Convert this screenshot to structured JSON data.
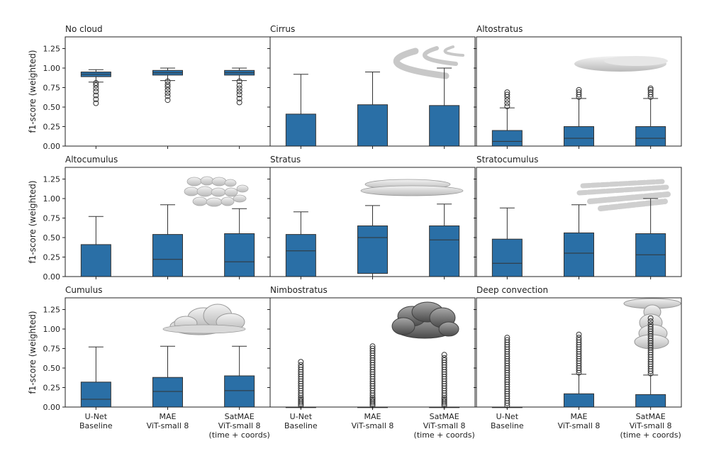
{
  "chart_data": {
    "type": "box",
    "ylabel": "f1-score (weighted)",
    "ylim": [
      0,
      1.4
    ],
    "yticks": [
      "0.00",
      "0.25",
      "0.50",
      "0.75",
      "1.00",
      "1.25"
    ],
    "categories": [
      [
        "U-Net",
        "Baseline"
      ],
      [
        "MAE",
        "ViT-small 8"
      ],
      [
        "SatMAE",
        "ViT-small 8",
        "(time + coords)"
      ]
    ],
    "box_color": "#2a6fa6",
    "panels": [
      {
        "title": "No cloud",
        "illustration": "none",
        "boxes": [
          {
            "q1": 0.89,
            "median": 0.92,
            "q3": 0.95,
            "whisker_low": 0.82,
            "whisker_high": 0.98,
            "outliers": [
              0.55,
              0.6,
              0.65,
              0.7,
              0.74,
              0.78,
              0.81
            ]
          },
          {
            "q1": 0.91,
            "median": 0.94,
            "q3": 0.97,
            "whisker_low": 0.84,
            "whisker_high": 1.0,
            "outliers": [
              0.59,
              0.64,
              0.68,
              0.72,
              0.76,
              0.79,
              0.83
            ]
          },
          {
            "q1": 0.91,
            "median": 0.94,
            "q3": 0.97,
            "whisker_low": 0.84,
            "whisker_high": 1.0,
            "outliers": [
              0.56,
              0.61,
              0.66,
              0.7,
              0.74,
              0.78,
              0.83
            ]
          }
        ]
      },
      {
        "title": "Cirrus",
        "illustration": "cirrus-cloud-icon",
        "boxes": [
          {
            "q1": 0.0,
            "median": 0.0,
            "q3": 0.41,
            "whisker_low": 0.0,
            "whisker_high": 0.92,
            "outliers": []
          },
          {
            "q1": 0.0,
            "median": 0.0,
            "q3": 0.53,
            "whisker_low": 0.0,
            "whisker_high": 0.95,
            "outliers": []
          },
          {
            "q1": 0.0,
            "median": 0.0,
            "q3": 0.52,
            "whisker_low": 0.0,
            "whisker_high": 1.0,
            "outliers": []
          }
        ]
      },
      {
        "title": "Altostratus",
        "illustration": "altostratus-cloud-icon",
        "boxes": [
          {
            "q1": 0.0,
            "median": 0.06,
            "q3": 0.2,
            "whisker_low": 0.0,
            "whisker_high": 0.49,
            "outliers": [
              0.51,
              0.55,
              0.59,
              0.63,
              0.66,
              0.69
            ]
          },
          {
            "q1": 0.0,
            "median": 0.1,
            "q3": 0.25,
            "whisker_low": 0.0,
            "whisker_high": 0.61,
            "outliers": [
              0.63,
              0.66,
              0.69,
              0.72
            ]
          },
          {
            "q1": 0.0,
            "median": 0.1,
            "q3": 0.25,
            "whisker_low": 0.0,
            "whisker_high": 0.61,
            "outliers": [
              0.63,
              0.66,
              0.69,
              0.72,
              0.74
            ]
          }
        ]
      },
      {
        "title": "Altocumulus",
        "illustration": "altocumulus-cloud-icon",
        "boxes": [
          {
            "q1": 0.0,
            "median": 0.0,
            "q3": 0.41,
            "whisker_low": 0.0,
            "whisker_high": 0.77,
            "outliers": []
          },
          {
            "q1": 0.0,
            "median": 0.22,
            "q3": 0.54,
            "whisker_low": 0.0,
            "whisker_high": 0.92,
            "outliers": []
          },
          {
            "q1": 0.0,
            "median": 0.19,
            "q3": 0.55,
            "whisker_low": 0.0,
            "whisker_high": 0.87,
            "outliers": []
          }
        ]
      },
      {
        "title": "Stratus",
        "illustration": "stratus-cloud-icon",
        "boxes": [
          {
            "q1": 0.0,
            "median": 0.33,
            "q3": 0.54,
            "whisker_low": 0.0,
            "whisker_high": 0.83,
            "outliers": []
          },
          {
            "q1": 0.04,
            "median": 0.5,
            "q3": 0.65,
            "whisker_low": 0.0,
            "whisker_high": 0.91,
            "outliers": []
          },
          {
            "q1": 0.0,
            "median": 0.47,
            "q3": 0.65,
            "whisker_low": 0.0,
            "whisker_high": 0.93,
            "outliers": []
          }
        ]
      },
      {
        "title": "Stratocumulus",
        "illustration": "stratocumulus-cloud-icon",
        "boxes": [
          {
            "q1": 0.0,
            "median": 0.17,
            "q3": 0.48,
            "whisker_low": 0.0,
            "whisker_high": 0.88,
            "outliers": []
          },
          {
            "q1": 0.0,
            "median": 0.3,
            "q3": 0.56,
            "whisker_low": 0.0,
            "whisker_high": 0.92,
            "outliers": []
          },
          {
            "q1": 0.0,
            "median": 0.28,
            "q3": 0.55,
            "whisker_low": 0.0,
            "whisker_high": 1.0,
            "outliers": []
          }
        ]
      },
      {
        "title": "Cumulus",
        "illustration": "cumulus-cloud-icon",
        "boxes": [
          {
            "q1": 0.0,
            "median": 0.1,
            "q3": 0.32,
            "whisker_low": 0.0,
            "whisker_high": 0.77,
            "outliers": []
          },
          {
            "q1": 0.0,
            "median": 0.2,
            "q3": 0.38,
            "whisker_low": 0.0,
            "whisker_high": 0.78,
            "outliers": []
          },
          {
            "q1": 0.0,
            "median": 0.21,
            "q3": 0.4,
            "whisker_low": 0.0,
            "whisker_high": 0.78,
            "outliers": []
          }
        ]
      },
      {
        "title": "Nimbostratus",
        "illustration": "nimbostratus-cloud-icon",
        "boxes": [
          {
            "q1": 0.0,
            "median": 0.0,
            "q3": 0.0,
            "whisker_low": 0.0,
            "whisker_high": 0.0,
            "outliers": [
              0.02,
              0.04,
              0.06,
              0.08,
              0.1,
              0.12,
              0.15,
              0.18,
              0.21,
              0.24,
              0.27,
              0.3,
              0.33,
              0.36,
              0.39,
              0.42,
              0.45,
              0.48,
              0.51,
              0.54,
              0.58
            ]
          },
          {
            "q1": 0.0,
            "median": 0.0,
            "q3": 0.0,
            "whisker_low": 0.0,
            "whisker_high": 0.0,
            "outliers": [
              0.02,
              0.04,
              0.06,
              0.08,
              0.1,
              0.12,
              0.15,
              0.18,
              0.21,
              0.24,
              0.27,
              0.3,
              0.33,
              0.36,
              0.39,
              0.42,
              0.45,
              0.48,
              0.51,
              0.54,
              0.57,
              0.6,
              0.63,
              0.66,
              0.69,
              0.72,
              0.75,
              0.78
            ]
          },
          {
            "q1": 0.0,
            "median": 0.0,
            "q3": 0.0,
            "whisker_low": 0.0,
            "whisker_high": 0.0,
            "outliers": [
              0.02,
              0.04,
              0.06,
              0.08,
              0.1,
              0.12,
              0.15,
              0.18,
              0.21,
              0.24,
              0.27,
              0.3,
              0.33,
              0.36,
              0.39,
              0.42,
              0.45,
              0.48,
              0.51,
              0.54,
              0.57,
              0.6,
              0.63,
              0.67
            ]
          }
        ]
      },
      {
        "title": "Deep convection",
        "illustration": "deep-convection-cloud-icon",
        "boxes": [
          {
            "q1": 0.0,
            "median": 0.0,
            "q3": 0.0,
            "whisker_low": 0.0,
            "whisker_high": 0.0,
            "outliers": [
              0.02,
              0.05,
              0.08,
              0.11,
              0.14,
              0.17,
              0.2,
              0.23,
              0.26,
              0.29,
              0.32,
              0.35,
              0.38,
              0.41,
              0.44,
              0.47,
              0.5,
              0.53,
              0.56,
              0.59,
              0.62,
              0.65,
              0.68,
              0.71,
              0.74,
              0.77,
              0.8,
              0.83,
              0.86,
              0.89
            ]
          },
          {
            "q1": 0.0,
            "median": 0.0,
            "q3": 0.17,
            "whisker_low": 0.0,
            "whisker_high": 0.42,
            "outliers": [
              0.44,
              0.47,
              0.5,
              0.53,
              0.56,
              0.59,
              0.62,
              0.65,
              0.68,
              0.71,
              0.74,
              0.77,
              0.8,
              0.83,
              0.86,
              0.89,
              0.93
            ]
          },
          {
            "q1": 0.0,
            "median": 0.0,
            "q3": 0.16,
            "whisker_low": 0.0,
            "whisker_high": 0.41,
            "outliers": [
              0.43,
              0.46,
              0.49,
              0.52,
              0.55,
              0.58,
              0.61,
              0.64,
              0.67,
              0.7,
              0.73,
              0.76,
              0.79,
              0.82,
              0.85,
              0.88,
              0.91,
              0.94,
              0.97,
              1.0,
              1.03,
              1.06,
              1.1,
              1.14
            ]
          }
        ]
      }
    ]
  }
}
